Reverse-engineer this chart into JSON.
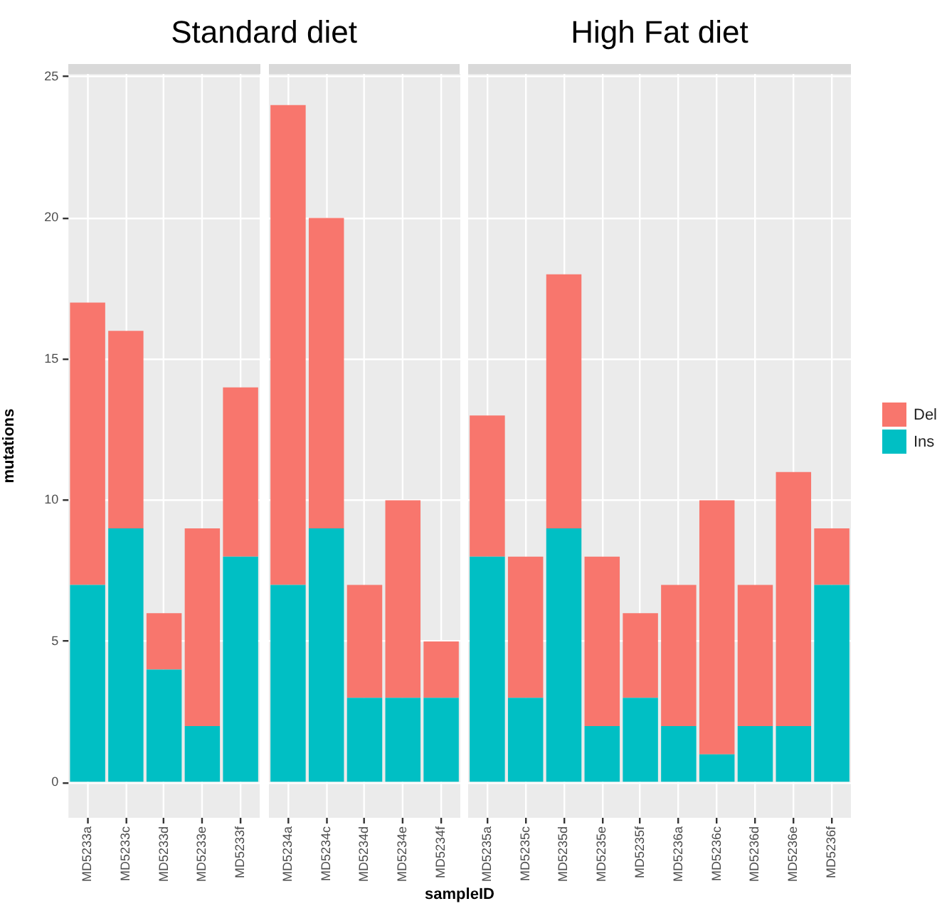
{
  "chart_data": [
    {
      "type": "bar",
      "title": "Standard diet",
      "ylabel": "mutations",
      "categories": [
        "MD5233a",
        "MD5233c",
        "MD5233d",
        "MD5233e",
        "MD5233f"
      ],
      "series": [
        {
          "color": "#00bfc4",
          "values": [
            7,
            9,
            4,
            2,
            8
          ]
        },
        {
          "color": "#f8766d",
          "values": [
            10,
            7,
            2,
            7,
            6
          ]
        }
      ],
      "stacked": true,
      "ylim": [
        -1.25,
        25.1
      ],
      "yticks": [
        0,
        5,
        10,
        15,
        20,
        25
      ],
      "grid": true
    },
    {
      "type": "bar",
      "xlabel": "sampleID",
      "categories": [
        "MD5234a",
        "MD5234c",
        "MD5234d",
        "MD5234e",
        "MD5234f"
      ],
      "series": [
        {
          "color": "#00bfc4",
          "values": [
            7,
            9,
            3,
            3,
            3
          ]
        },
        {
          "color": "#f8766d",
          "values": [
            17,
            11,
            4,
            7,
            2
          ]
        }
      ],
      "stacked": true,
      "ylim": [
        -1.25,
        25.1
      ],
      "yticks": [
        0,
        5,
        10,
        15,
        20,
        25
      ],
      "grid": true,
      "tick_labels": "x"
    },
    {
      "type": "bar",
      "title": "High Fat diet",
      "categories": [
        "MD5235a",
        "MD5235c",
        "MD5235d",
        "MD5235e",
        "MD5235f",
        "MD5236a",
        "MD5236c",
        "MD5236d",
        "MD5236e",
        "MD5236f"
      ],
      "series": [
        {
          "name": "Ins",
          "color": "#00bfc4",
          "values": [
            8,
            3,
            9,
            2,
            3,
            2,
            1,
            2,
            2,
            7
          ]
        },
        {
          "name": "Del",
          "color": "#f8766d",
          "values": [
            5,
            5,
            9,
            6,
            3,
            5,
            9,
            5,
            9,
            2
          ]
        }
      ],
      "stacked": true,
      "ylim": [
        -1.25,
        25.1
      ],
      "yticks": [
        0,
        5,
        10,
        15,
        20,
        25
      ],
      "grid": true,
      "tick_labels": "x",
      "legend": "right"
    }
  ]
}
